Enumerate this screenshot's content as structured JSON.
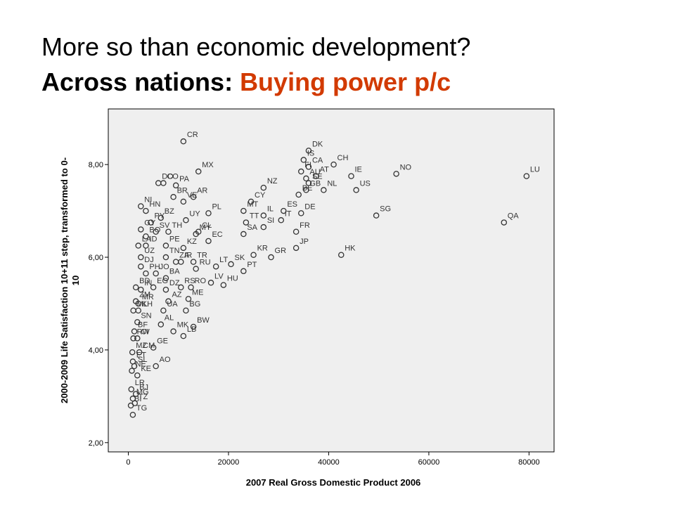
{
  "slide": {
    "title_line1": "More so than economic development?",
    "title_line2_prefix": "Across nations: ",
    "title_line2_accent": "Buying power p/c",
    "accent_color": "#d23a00"
  },
  "chart_data": {
    "type": "scatter",
    "xlabel": "2007 Real Gross Domestic Product 2006",
    "ylabel_line1": "2000-2009 Life Satisfaction 10+11 step, transformed to 0-",
    "ylabel_line2": "10",
    "xlim": [
      -4000,
      85000
    ],
    "ylim": [
      1.8,
      9.2
    ],
    "x_ticks": [
      0,
      20000,
      40000,
      60000,
      80000
    ],
    "x_tick_labels": [
      "0",
      "20000",
      "40000",
      "60000",
      "80000"
    ],
    "y_ticks": [
      2,
      4,
      6,
      8
    ],
    "y_tick_labels": [
      "2,00",
      "4,00",
      "6,00",
      "8,00"
    ],
    "plot_background": "#efefef",
    "marker": "hollow-circle",
    "points": [
      {
        "label": "CR",
        "x": 11000,
        "y": 8.5
      },
      {
        "label": "DK",
        "x": 36000,
        "y": 8.3
      },
      {
        "label": "IS",
        "x": 35000,
        "y": 8.1
      },
      {
        "label": "CA",
        "x": 36000,
        "y": 7.95
      },
      {
        "label": "FI",
        "x": 34500,
        "y": 7.85
      },
      {
        "label": "CH",
        "x": 41000,
        "y": 8.0
      },
      {
        "label": "NO",
        "x": 53500,
        "y": 7.8
      },
      {
        "label": "LU",
        "x": 79500,
        "y": 7.75
      },
      {
        "label": "IE",
        "x": 44500,
        "y": 7.75
      },
      {
        "label": "MX",
        "x": 14000,
        "y": 7.85
      },
      {
        "label": "AU",
        "x": 35500,
        "y": 7.7
      },
      {
        "label": "AT",
        "x": 37500,
        "y": 7.75
      },
      {
        "label": "US",
        "x": 45500,
        "y": 7.45
      },
      {
        "label": "NZ",
        "x": 27000,
        "y": 7.5
      },
      {
        "label": "SE",
        "x": 36000,
        "y": 7.6
      },
      {
        "label": "NL",
        "x": 39000,
        "y": 7.45
      },
      {
        "label": "GB",
        "x": 35500,
        "y": 7.45
      },
      {
        "label": "BE",
        "x": 34000,
        "y": 7.35
      },
      {
        "label": "CO",
        "x": 7000,
        "y": 7.6
      },
      {
        "label": "DO",
        "x": 6000,
        "y": 7.6
      },
      {
        "label": "PA",
        "x": 9500,
        "y": 7.55
      },
      {
        "label": "BR",
        "x": 9000,
        "y": 7.3
      },
      {
        "label": "VE",
        "x": 11000,
        "y": 7.2
      },
      {
        "label": "AR",
        "x": 13000,
        "y": 7.3
      },
      {
        "label": "NI",
        "x": 2500,
        "y": 7.1
      },
      {
        "label": "HN",
        "x": 3500,
        "y": 7.0
      },
      {
        "label": "CY",
        "x": 24500,
        "y": 7.2
      },
      {
        "label": "IL",
        "x": 27000,
        "y": 6.9
      },
      {
        "label": "ES",
        "x": 31000,
        "y": 7.0
      },
      {
        "label": "MT",
        "x": 23000,
        "y": 7.0
      },
      {
        "label": "IT",
        "x": 30500,
        "y": 6.8
      },
      {
        "label": "DE",
        "x": 34500,
        "y": 6.95
      },
      {
        "label": "SG",
        "x": 49500,
        "y": 6.9
      },
      {
        "label": "QA",
        "x": 75000,
        "y": 6.75
      },
      {
        "label": "PL",
        "x": 16000,
        "y": 6.95
      },
      {
        "label": "BZ",
        "x": 6500,
        "y": 6.85
      },
      {
        "label": "UY",
        "x": 11500,
        "y": 6.8
      },
      {
        "label": "PY",
        "x": 4500,
        "y": 6.75
      },
      {
        "label": "TT",
        "x": 23500,
        "y": 6.75
      },
      {
        "label": "SI",
        "x": 27000,
        "y": 6.65
      },
      {
        "label": "GY",
        "x": 2500,
        "y": 6.6
      },
      {
        "label": "SV",
        "x": 5500,
        "y": 6.55
      },
      {
        "label": "TH",
        "x": 8000,
        "y": 6.55
      },
      {
        "label": "CL",
        "x": 14000,
        "y": 6.55
      },
      {
        "label": "FR",
        "x": 33500,
        "y": 6.55
      },
      {
        "label": "SA",
        "x": 23000,
        "y": 6.5
      },
      {
        "label": "BO",
        "x": 3500,
        "y": 6.45
      },
      {
        "label": "MY",
        "x": 13500,
        "y": 6.5
      },
      {
        "label": "LA",
        "x": 2000,
        "y": 6.25
      },
      {
        "label": "ID",
        "x": 3500,
        "y": 6.25
      },
      {
        "label": "PE",
        "x": 7500,
        "y": 6.25
      },
      {
        "label": "KZ",
        "x": 11000,
        "y": 6.2
      },
      {
        "label": "EC",
        "x": 16000,
        "y": 6.35
      },
      {
        "label": "JP",
        "x": 33500,
        "y": 6.2
      },
      {
        "label": "KR",
        "x": 25000,
        "y": 6.05
      },
      {
        "label": "GR",
        "x": 28500,
        "y": 6.0
      },
      {
        "label": "HK",
        "x": 42500,
        "y": 6.05
      },
      {
        "label": "UZ",
        "x": 2500,
        "y": 6.0
      },
      {
        "label": "TN",
        "x": 7500,
        "y": 6.0
      },
      {
        "label": "ZA",
        "x": 9500,
        "y": 5.9
      },
      {
        "label": "IR",
        "x": 10500,
        "y": 5.9
      },
      {
        "label": "TR",
        "x": 13000,
        "y": 5.9
      },
      {
        "label": "LT",
        "x": 17500,
        "y": 5.8
      },
      {
        "label": "SK",
        "x": 20500,
        "y": 5.85
      },
      {
        "label": "DJ",
        "x": 2500,
        "y": 5.8
      },
      {
        "label": "RU",
        "x": 13500,
        "y": 5.75
      },
      {
        "label": "PT",
        "x": 23000,
        "y": 5.7
      },
      {
        "label": "PH",
        "x": 3500,
        "y": 5.65
      },
      {
        "label": "JO",
        "x": 5500,
        "y": 5.65
      },
      {
        "label": "BA",
        "x": 7500,
        "y": 5.55
      },
      {
        "label": "EG",
        "x": 5000,
        "y": 5.35
      },
      {
        "label": "BD",
        "x": 1500,
        "y": 5.35
      },
      {
        "label": "IN",
        "x": 2500,
        "y": 5.3
      },
      {
        "label": "DZ",
        "x": 7500,
        "y": 5.3
      },
      {
        "label": "RS",
        "x": 10500,
        "y": 5.35
      },
      {
        "label": "RO",
        "x": 12500,
        "y": 5.35
      },
      {
        "label": "HU",
        "x": 19000,
        "y": 5.4
      },
      {
        "label": "LV",
        "x": 16500,
        "y": 5.45
      },
      {
        "label": "ZM",
        "x": 1500,
        "y": 5.05
      },
      {
        "label": "MR",
        "x": 2000,
        "y": 5.0
      },
      {
        "label": "AZ",
        "x": 8000,
        "y": 5.05
      },
      {
        "label": "ME",
        "x": 12000,
        "y": 5.1
      },
      {
        "label": "ML",
        "x": 1000,
        "y": 4.85
      },
      {
        "label": "KH",
        "x": 2000,
        "y": 4.85
      },
      {
        "label": "UA",
        "x": 7000,
        "y": 4.85
      },
      {
        "label": "BG",
        "x": 11500,
        "y": 4.85
      },
      {
        "label": "SN",
        "x": 1800,
        "y": 4.6
      },
      {
        "label": "BF",
        "x": 1200,
        "y": 4.4
      },
      {
        "label": "AL",
        "x": 6500,
        "y": 4.55
      },
      {
        "label": "BW",
        "x": 13000,
        "y": 4.5
      },
      {
        "label": "MK",
        "x": 9000,
        "y": 4.4
      },
      {
        "label": "LB",
        "x": 11000,
        "y": 4.3
      },
      {
        "label": "RW",
        "x": 1000,
        "y": 4.25
      },
      {
        "label": "CI",
        "x": 1800,
        "y": 4.25
      },
      {
        "label": "GE",
        "x": 5000,
        "y": 4.05
      },
      {
        "label": "CM",
        "x": 2200,
        "y": 3.95
      },
      {
        "label": "MZ",
        "x": 800,
        "y": 3.95
      },
      {
        "label": "ET",
        "x": 900,
        "y": 3.75
      },
      {
        "label": "SL",
        "x": 1200,
        "y": 3.65
      },
      {
        "label": "AO",
        "x": 5500,
        "y": 3.65
      },
      {
        "label": "NE",
        "x": 700,
        "y": 3.55
      },
      {
        "label": "KE",
        "x": 1800,
        "y": 3.45
      },
      {
        "label": "LR",
        "x": 600,
        "y": 3.15
      },
      {
        "label": "BJ",
        "x": 1500,
        "y": 3.05
      },
      {
        "label": "MG",
        "x": 900,
        "y": 2.95
      },
      {
        "label": "TZ",
        "x": 1300,
        "y": 2.85
      },
      {
        "label": "BI",
        "x": 500,
        "y": 2.8
      },
      {
        "label": "TG",
        "x": 900,
        "y": 2.6
      }
    ]
  }
}
